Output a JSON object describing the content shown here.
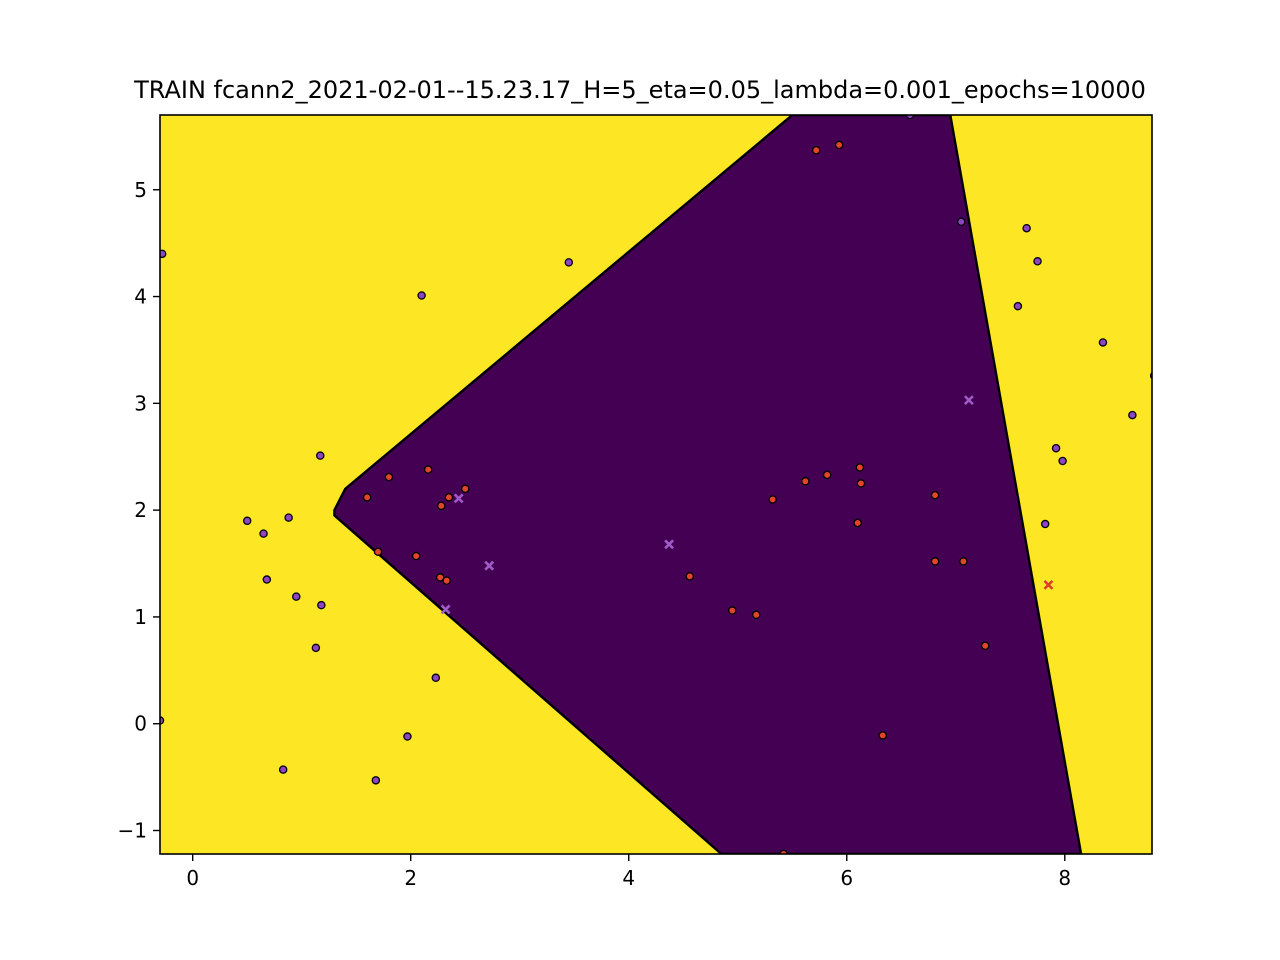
{
  "chart_data": {
    "type": "scatter",
    "title": "TRAIN fcann2_2021-02-01--15.23.17_H=5_eta=0.05_lambda=0.001_epochs=10000",
    "xlabel": "",
    "ylabel": "",
    "xlim": [
      -0.3,
      8.8
    ],
    "ylim": [
      -1.22,
      5.7
    ],
    "xticks": [
      0,
      2,
      4,
      6,
      8
    ],
    "xtick_labels": [
      "0",
      "2",
      "4",
      "6",
      "8"
    ],
    "yticks": [
      -1,
      0,
      1,
      2,
      3,
      4,
      5
    ],
    "ytick_labels": [
      "−1",
      "0",
      "1",
      "2",
      "3",
      "4",
      "5"
    ],
    "grid": false,
    "colors": {
      "region_outside": "#fde725",
      "region_inside": "#440154",
      "class_purple": "#8e44c4",
      "class_red": "#e2452a",
      "misclassified_purple": "#a05cc6",
      "misclassified_red": "#e03a2f"
    },
    "decision_region": {
      "label": "class_inside",
      "polygon": [
        [
          1.3,
          2.0
        ],
        [
          1.4,
          2.2
        ],
        [
          5.5,
          5.7
        ],
        [
          6.95,
          5.7
        ],
        [
          8.15,
          -1.22
        ],
        [
          4.85,
          -1.22
        ],
        [
          1.3,
          1.95
        ]
      ]
    },
    "series": [
      {
        "class": "purple",
        "marker": "circle",
        "points": [
          [
            -0.28,
            4.4
          ],
          [
            -0.3,
            0.03
          ],
          [
            0.5,
            1.9
          ],
          [
            0.65,
            1.78
          ],
          [
            0.68,
            1.35
          ],
          [
            0.88,
            1.93
          ],
          [
            0.95,
            1.19
          ],
          [
            0.83,
            -0.43
          ],
          [
            1.17,
            2.51
          ],
          [
            1.18,
            1.11
          ],
          [
            1.13,
            0.71
          ],
          [
            1.68,
            -0.53
          ],
          [
            1.97,
            -0.12
          ],
          [
            2.1,
            4.01
          ],
          [
            2.23,
            0.43
          ],
          [
            3.45,
            4.32
          ],
          [
            7.65,
            4.64
          ],
          [
            7.75,
            4.33
          ],
          [
            7.57,
            3.91
          ],
          [
            8.35,
            3.57
          ],
          [
            8.82,
            3.26
          ],
          [
            8.62,
            2.89
          ],
          [
            7.92,
            2.58
          ],
          [
            7.98,
            2.46
          ],
          [
            7.82,
            1.87
          ],
          [
            7.05,
            4.7
          ],
          [
            6.58,
            5.7
          ]
        ]
      },
      {
        "class": "red",
        "marker": "circle",
        "points": [
          [
            1.6,
            2.12
          ],
          [
            1.8,
            2.31
          ],
          [
            2.16,
            2.38
          ],
          [
            2.5,
            2.2
          ],
          [
            2.35,
            2.12
          ],
          [
            2.28,
            2.04
          ],
          [
            1.7,
            1.61
          ],
          [
            2.05,
            1.57
          ],
          [
            2.27,
            1.37
          ],
          [
            2.33,
            1.34
          ],
          [
            4.56,
            1.38
          ],
          [
            4.95,
            1.06
          ],
          [
            5.17,
            1.02
          ],
          [
            5.32,
            2.1
          ],
          [
            5.62,
            2.27
          ],
          [
            5.82,
            2.33
          ],
          [
            6.12,
            2.4
          ],
          [
            6.13,
            2.25
          ],
          [
            6.1,
            1.88
          ],
          [
            6.81,
            2.14
          ],
          [
            6.81,
            1.52
          ],
          [
            7.07,
            1.52
          ],
          [
            7.27,
            0.73
          ],
          [
            6.33,
            -0.11
          ],
          [
            5.72,
            5.37
          ],
          [
            5.93,
            5.42
          ],
          [
            5.42,
            -1.22
          ]
        ]
      },
      {
        "class": "purple",
        "marker": "x",
        "misclassified": true,
        "points": [
          [
            2.44,
            2.11
          ],
          [
            2.72,
            1.48
          ],
          [
            2.32,
            1.07
          ],
          [
            4.37,
            1.68
          ],
          [
            7.12,
            3.03
          ]
        ]
      },
      {
        "class": "red",
        "marker": "x",
        "misclassified": true,
        "points": [
          [
            7.85,
            1.3
          ]
        ]
      }
    ]
  }
}
